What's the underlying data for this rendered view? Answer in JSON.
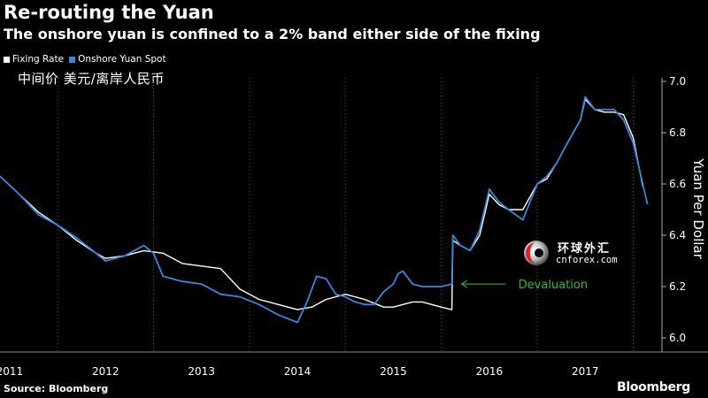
{
  "title": "Re-routing the Yuan",
  "subtitle": "The onshore yuan is confined to a 2% band either side of the fixing",
  "cn_title": "中间价  美元/离岸人民币",
  "source": "Source: Bloomberg",
  "brand": "Bloomberg",
  "colors": {
    "background": "#000000",
    "fixing": "#ffffff",
    "spot": "#3a86d8",
    "annotation": "#2fbf2f",
    "grid": "#555555"
  },
  "watermark": {
    "cn": "环球外汇",
    "en": "cnforex.com"
  },
  "chart_data": {
    "type": "line",
    "title": "Re-routing the Yuan",
    "subtitle": "The onshore yuan is confined to a 2% band either side of the fixing",
    "ylabel": "Yuan Per Dollar",
    "ylim": [
      6.0,
      7.0
    ],
    "xlim": [
      2010.9,
      2017.8
    ],
    "yticks": [
      "6.0",
      "6.2",
      "6.4",
      "6.6",
      "6.8",
      "7.0"
    ],
    "x_tick_labels": [
      "2011",
      "2012",
      "2013",
      "2014",
      "2015",
      "2016",
      "2017"
    ],
    "grid": "vertical dotted",
    "legend_position": "top-left",
    "series": [
      {
        "name": "Fixing Rate",
        "color": "#ffffff",
        "x": [
          2010.9,
          2011.1,
          2011.3,
          2011.5,
          2011.7,
          2011.9,
          2012.0,
          2012.2,
          2012.4,
          2012.6,
          2012.8,
          2013.0,
          2013.2,
          2013.4,
          2013.6,
          2013.8,
          2014.0,
          2014.15,
          2014.3,
          2014.5,
          2014.7,
          2014.9,
          2015.0,
          2015.2,
          2015.3,
          2015.5,
          2015.61,
          2015.62,
          2015.7,
          2015.8,
          2015.9,
          2016.0,
          2016.1,
          2016.2,
          2016.35,
          2016.5,
          2016.6,
          2016.7,
          2016.8,
          2016.95,
          2017.0,
          2017.1,
          2017.2,
          2017.3,
          2017.4,
          2017.5,
          2017.6
        ],
        "values": [
          6.63,
          6.56,
          6.49,
          6.44,
          6.38,
          6.33,
          6.31,
          6.32,
          6.34,
          6.33,
          6.29,
          6.28,
          6.27,
          6.19,
          6.15,
          6.13,
          6.11,
          6.12,
          6.15,
          6.17,
          6.15,
          6.12,
          6.12,
          6.14,
          6.14,
          6.12,
          6.11,
          6.38,
          6.36,
          6.34,
          6.4,
          6.56,
          6.52,
          6.5,
          6.5,
          6.6,
          6.62,
          6.68,
          6.75,
          6.85,
          6.93,
          6.89,
          6.88,
          6.88,
          6.87,
          6.78,
          6.59
        ]
      },
      {
        "name": "Onshore Yuan Spot",
        "color": "#3a86d8",
        "x": [
          2010.9,
          2011.1,
          2011.3,
          2011.5,
          2011.7,
          2011.9,
          2012.0,
          2012.2,
          2012.4,
          2012.5,
          2012.6,
          2012.8,
          2013.0,
          2013.2,
          2013.4,
          2013.6,
          2013.8,
          2014.0,
          2014.1,
          2014.2,
          2014.3,
          2014.4,
          2014.5,
          2014.6,
          2014.7,
          2014.8,
          2014.9,
          2015.0,
          2015.05,
          2015.1,
          2015.2,
          2015.3,
          2015.5,
          2015.61,
          2015.62,
          2015.7,
          2015.8,
          2015.9,
          2016.0,
          2016.1,
          2016.2,
          2016.35,
          2016.5,
          2016.6,
          2016.7,
          2016.8,
          2016.95,
          2017.0,
          2017.1,
          2017.2,
          2017.3,
          2017.4,
          2017.5,
          2017.65
        ],
        "values": [
          6.63,
          6.56,
          6.48,
          6.44,
          6.39,
          6.33,
          6.3,
          6.32,
          6.36,
          6.33,
          6.24,
          6.22,
          6.21,
          6.17,
          6.16,
          6.13,
          6.09,
          6.06,
          6.14,
          6.24,
          6.23,
          6.17,
          6.16,
          6.14,
          6.13,
          6.13,
          6.18,
          6.21,
          6.25,
          6.26,
          6.21,
          6.2,
          6.2,
          6.21,
          6.4,
          6.36,
          6.34,
          6.42,
          6.58,
          6.53,
          6.5,
          6.46,
          6.6,
          6.63,
          6.68,
          6.75,
          6.85,
          6.94,
          6.89,
          6.89,
          6.89,
          6.85,
          6.76,
          6.52
        ]
      }
    ],
    "annotations": [
      {
        "text": "Devaluation",
        "x": 2015.62,
        "y": 6.21,
        "color": "#2fbf2f"
      }
    ]
  }
}
